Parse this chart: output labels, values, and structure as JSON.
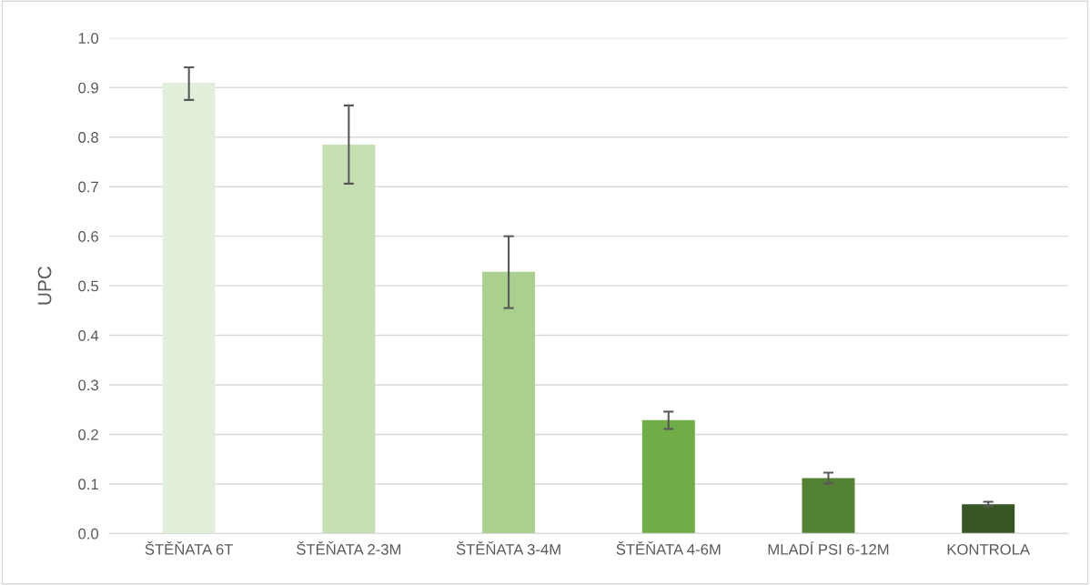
{
  "chart_data": {
    "type": "bar",
    "ylabel": "UPC",
    "categories": [
      "ŠTĚŇATA 6T",
      "ŠTĚŇATA 2-3M",
      "ŠTĚŇATA 3-4M",
      "ŠTĚŇATA 4-6M",
      "MLADÍ PSI 6-12M",
      "KONTROLA"
    ],
    "values": [
      0.91,
      0.785,
      0.528,
      0.229,
      0.112,
      0.059
    ],
    "errors": [
      [
        0.875,
        0.941
      ],
      [
        0.706,
        0.864
      ],
      [
        0.455,
        0.6
      ],
      [
        0.211,
        0.246
      ],
      [
        0.101,
        0.123
      ],
      [
        0.055,
        0.064
      ]
    ],
    "colors": [
      "#e2efda",
      "#c6e0b4",
      "#a9d08e",
      "#70ad47",
      "#548235",
      "#375623"
    ],
    "ylim": [
      0,
      1
    ],
    "yticks": [
      {
        "value": 0,
        "label": "0.0"
      },
      {
        "value": 0.1,
        "label": "0.1"
      },
      {
        "value": 0.2,
        "label": "0.2"
      },
      {
        "value": 0.3,
        "label": "0.3"
      },
      {
        "value": 0.4,
        "label": "0.4"
      },
      {
        "value": 0.5,
        "label": "0.5"
      },
      {
        "value": 0.6,
        "label": "0.6"
      },
      {
        "value": 0.7,
        "label": "0.7"
      },
      {
        "value": 0.8,
        "label": "0.8"
      },
      {
        "value": 0.9,
        "label": "0.9"
      },
      {
        "value": 1,
        "label": "1.0"
      }
    ],
    "grid": "y"
  }
}
